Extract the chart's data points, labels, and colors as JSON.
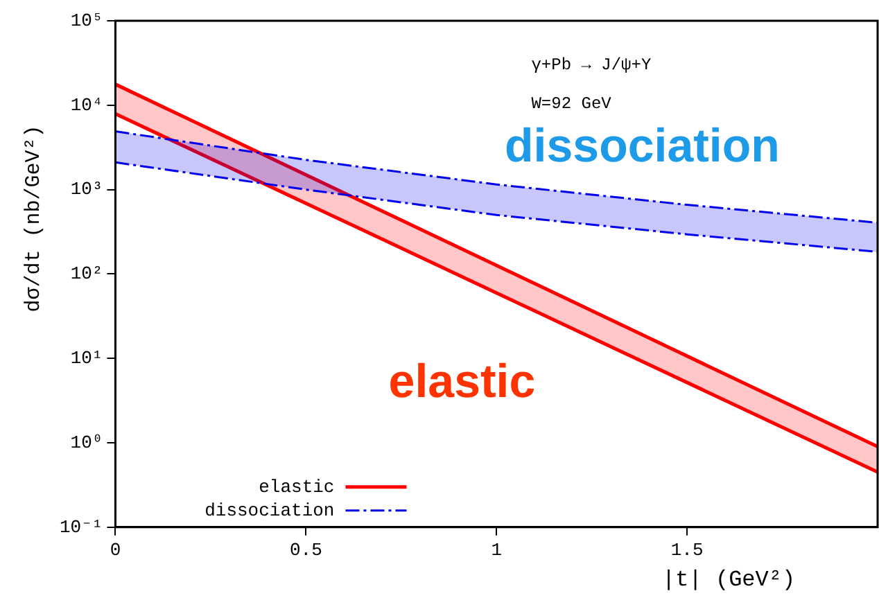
{
  "chart_data": {
    "type": "line",
    "xlabel": "|t| (GeV²)",
    "ylabel": "dσ/dt (nb/GeV²)",
    "log": "y",
    "xlim": [
      0,
      2
    ],
    "xticks": [
      0,
      0.5,
      1,
      1.5
    ],
    "ylim": [
      0.1,
      100000
    ],
    "yticks": [
      {
        "value": 0.1,
        "label": "10⁻¹"
      },
      {
        "value": 1,
        "label": "10⁰"
      },
      {
        "value": 10,
        "label": "10¹"
      },
      {
        "value": 100,
        "label": "10²"
      },
      {
        "value": 1000,
        "label": "10³"
      },
      {
        "value": 10000,
        "label": "10⁴"
      },
      {
        "value": 100000,
        "label": "10⁵"
      }
    ],
    "grid": false,
    "legend": "bottom left",
    "marker": "none",
    "series": [
      {
        "name": "elastic",
        "color": "#ff0000",
        "line_style": "solid",
        "x": [
          0,
          2
        ],
        "values": [
          17700,
          0.9
        ]
      },
      {
        "color": "#ff0000",
        "line_style": "solid",
        "x": [
          0,
          2
        ],
        "values": [
          7900,
          0.45
        ],
        "upper": [
          17700,
          0.9
        ],
        "lower": [
          7900,
          0.45
        ]
      },
      {
        "name": "dissociation",
        "color": "#0000ee",
        "line_style": "dashed",
        "x": [
          0,
          0.5,
          1,
          1.5,
          2
        ],
        "values": [
          4900,
          2250,
          1150,
          660,
          405
        ]
      },
      {
        "color": "#0000ee",
        "line_style": "dashed",
        "x": [
          0,
          0.5,
          1,
          1.5,
          2
        ],
        "values": [
          2100,
          1000,
          500,
          295,
          183
        ],
        "upper": [
          4900,
          2250,
          1150,
          660,
          405
        ],
        "lower": [
          2100,
          1000,
          500,
          295,
          183
        ]
      }
    ],
    "annotations": [
      "γ+Pb → J/ψ+Y",
      "W=92 GeV",
      "dissociation",
      "elastic"
    ]
  }
}
